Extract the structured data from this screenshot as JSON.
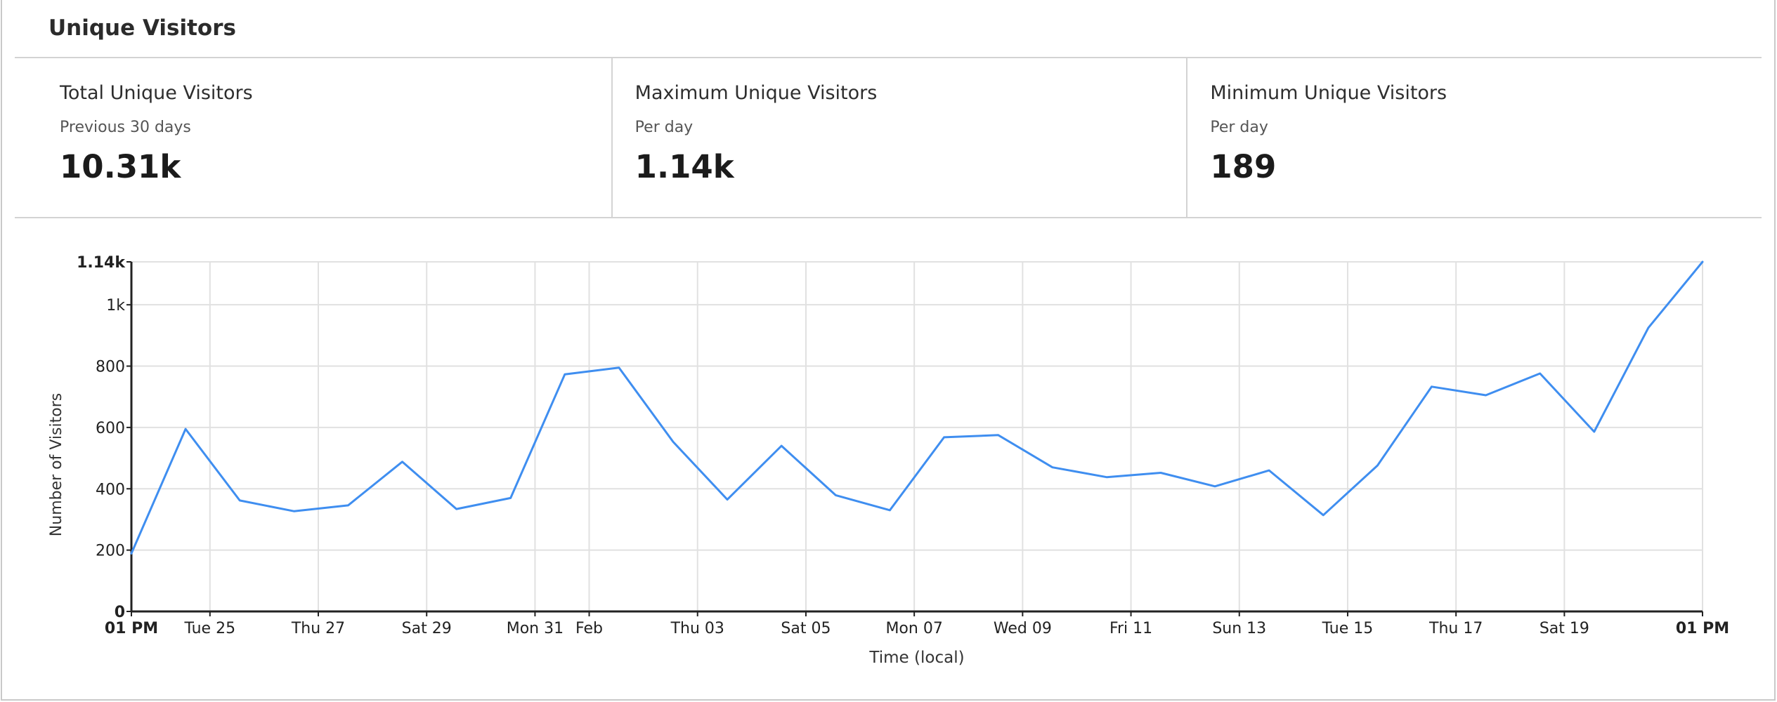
{
  "panel": {
    "title": "Unique Visitors"
  },
  "stats": [
    {
      "title": "Total Unique Visitors",
      "subtitle": "Previous 30 days",
      "value": "10.31k"
    },
    {
      "title": "Maximum Unique Visitors",
      "subtitle": "Per day",
      "value": "1.14k"
    },
    {
      "title": "Minimum Unique Visitors",
      "subtitle": "Per day",
      "value": "189"
    }
  ],
  "colors": {
    "line": "#3f8ef0",
    "grid": "#e1e1e1",
    "axis": "#222222"
  },
  "chart_data": {
    "type": "line",
    "xlabel": "Time (local)",
    "ylabel": "Number of Visitors",
    "ylim": [
      0,
      1140
    ],
    "y_ticks": [
      {
        "value": 0,
        "label": "0",
        "bold": true
      },
      {
        "value": 200,
        "label": "200"
      },
      {
        "value": 400,
        "label": "400"
      },
      {
        "value": 600,
        "label": "600"
      },
      {
        "value": 800,
        "label": "800"
      },
      {
        "value": 1000,
        "label": "1k"
      },
      {
        "value": 1140,
        "label": "1.14k",
        "bold": true
      }
    ],
    "x_ticks": [
      {
        "index": 0,
        "label": "01 PM",
        "bold": true
      },
      {
        "index": 1.45,
        "label": "Tue 25"
      },
      {
        "index": 3.45,
        "label": "Thu 27"
      },
      {
        "index": 5.45,
        "label": "Sat 29"
      },
      {
        "index": 7.45,
        "label": "Mon 31"
      },
      {
        "index": 8.45,
        "label": "Feb"
      },
      {
        "index": 10.45,
        "label": "Thu 03"
      },
      {
        "index": 12.45,
        "label": "Sat 05"
      },
      {
        "index": 14.45,
        "label": "Mon 07"
      },
      {
        "index": 16.45,
        "label": "Wed 09"
      },
      {
        "index": 18.45,
        "label": "Fri 11"
      },
      {
        "index": 20.45,
        "label": "Sun 13"
      },
      {
        "index": 22.45,
        "label": "Tue 15"
      },
      {
        "index": 24.45,
        "label": "Thu 17"
      },
      {
        "index": 26.45,
        "label": "Sat 19"
      },
      {
        "index": 29,
        "label": "01 PM",
        "bold": true
      }
    ],
    "series": [
      {
        "values": [
          189,
          595,
          362,
          327,
          346,
          488,
          334,
          370,
          773,
          795,
          553,
          365,
          540,
          379,
          330,
          568,
          575,
          470,
          438,
          452,
          408,
          460,
          314,
          476,
          733,
          705,
          776,
          586,
          925,
          1140
        ]
      }
    ],
    "grid": true,
    "legend": "none"
  }
}
